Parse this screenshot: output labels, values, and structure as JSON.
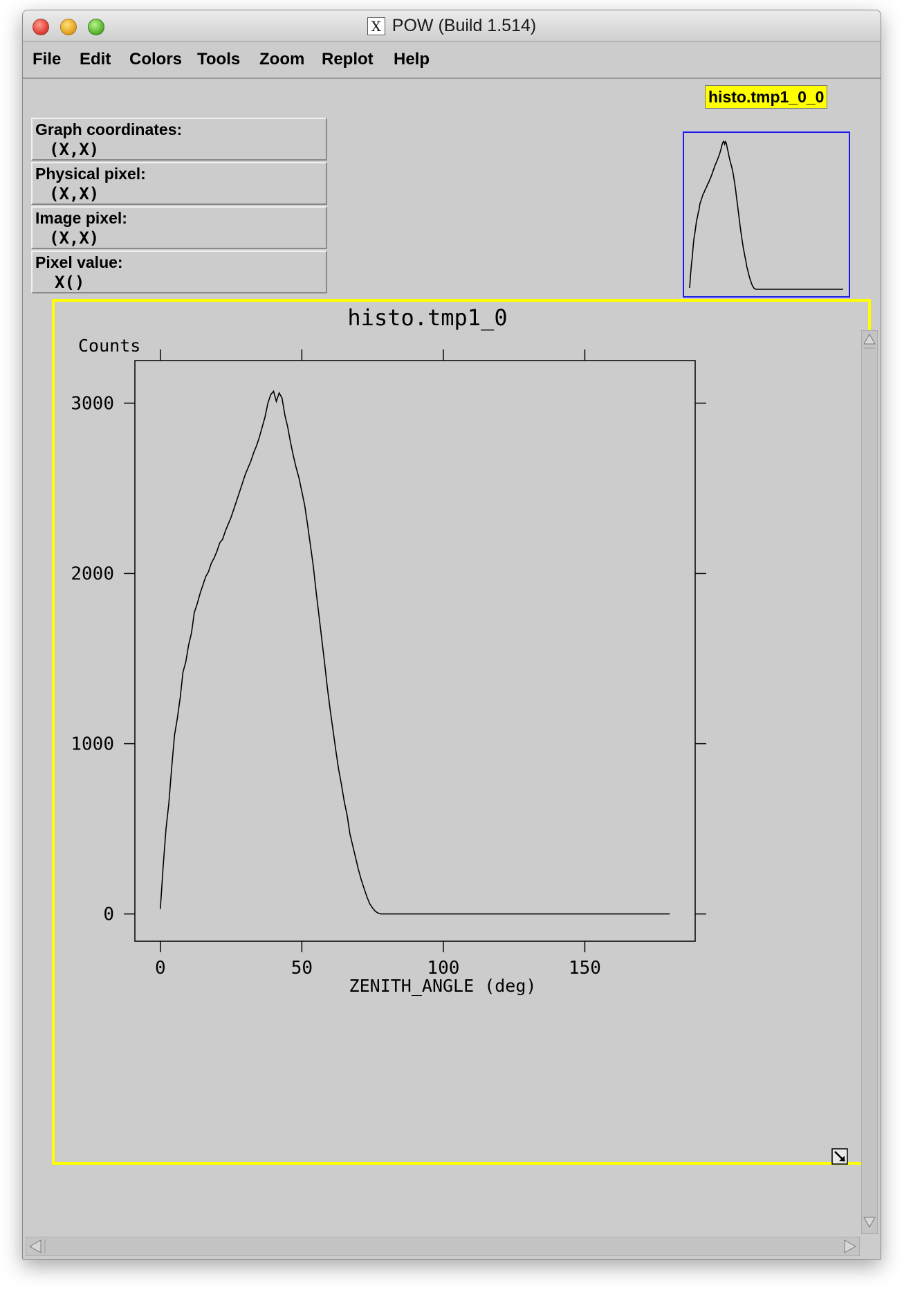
{
  "window": {
    "title": "POW (Build 1.514)",
    "x_icon": "X"
  },
  "menu": [
    "File",
    "Edit",
    "Colors",
    "Tools",
    "Zoom",
    "Replot",
    "Help"
  ],
  "readouts": [
    {
      "label": "Graph coordinates:",
      "value": "(X,X)"
    },
    {
      "label": "Physical pixel:",
      "value": "(X,X)"
    },
    {
      "label": "Image pixel:",
      "value": "(X,X)"
    },
    {
      "label": "Pixel value:",
      "value": "X()"
    }
  ],
  "graph_tag": "histo.tmp1_0_0",
  "colors": {
    "window_bg": "#cccccc",
    "frame_highlight": "#ffff00",
    "preview_border": "#1a1af0",
    "line": "#000000"
  },
  "chart_data": {
    "type": "line",
    "title": "histo.tmp1_0",
    "xlabel": "ZENITH_ANGLE (deg)",
    "ylabel": "Counts",
    "xlim": [
      -9,
      189
    ],
    "ylim": [
      -160,
      3250
    ],
    "xticks": [
      0,
      50,
      100,
      150
    ],
    "yticks": [
      0,
      1000,
      2000,
      3000
    ],
    "grid": false,
    "series": [
      {
        "x": [
          0,
          1,
          2,
          3,
          4,
          5,
          6,
          7,
          8,
          9,
          10,
          11,
          12,
          13,
          14,
          15,
          16,
          17,
          18,
          19,
          20,
          21,
          22,
          23,
          24,
          25,
          26,
          27,
          28,
          29,
          30,
          31,
          32,
          33,
          34,
          35,
          36,
          37,
          38,
          39,
          40,
          41,
          42,
          43,
          44,
          45,
          46,
          47,
          48,
          49,
          50,
          51,
          52,
          53,
          54,
          55,
          56,
          57,
          58,
          59,
          60,
          61,
          62,
          63,
          64,
          65,
          66,
          67,
          68,
          69,
          70,
          71,
          72,
          73,
          74,
          75,
          76,
          77,
          78,
          79,
          80,
          81,
          82,
          83,
          84,
          85,
          86,
          87,
          88,
          89,
          90,
          91,
          92,
          93,
          94,
          95,
          96,
          97,
          98,
          99,
          100,
          110,
          120,
          130,
          140,
          150,
          160,
          170,
          180
        ],
        "y": [
          30,
          280,
          500,
          650,
          860,
          1050,
          1150,
          1270,
          1420,
          1480,
          1580,
          1650,
          1770,
          1820,
          1880,
          1930,
          1980,
          2010,
          2060,
          2090,
          2130,
          2180,
          2200,
          2250,
          2290,
          2330,
          2380,
          2430,
          2480,
          2530,
          2580,
          2620,
          2660,
          2710,
          2750,
          2800,
          2860,
          2920,
          3000,
          3050,
          3070,
          3010,
          3060,
          3030,
          2930,
          2860,
          2770,
          2690,
          2620,
          2560,
          2480,
          2400,
          2290,
          2170,
          2050,
          1900,
          1760,
          1620,
          1480,
          1330,
          1200,
          1080,
          960,
          850,
          760,
          660,
          580,
          470,
          400,
          330,
          260,
          200,
          150,
          100,
          60,
          35,
          15,
          5,
          0,
          0,
          0,
          0,
          0,
          0,
          0,
          0,
          0,
          0,
          0,
          0,
          0,
          0,
          0,
          0,
          0,
          0,
          0,
          0,
          0,
          0,
          0,
          0,
          0,
          0,
          0,
          0,
          0,
          0,
          0
        ]
      }
    ]
  }
}
